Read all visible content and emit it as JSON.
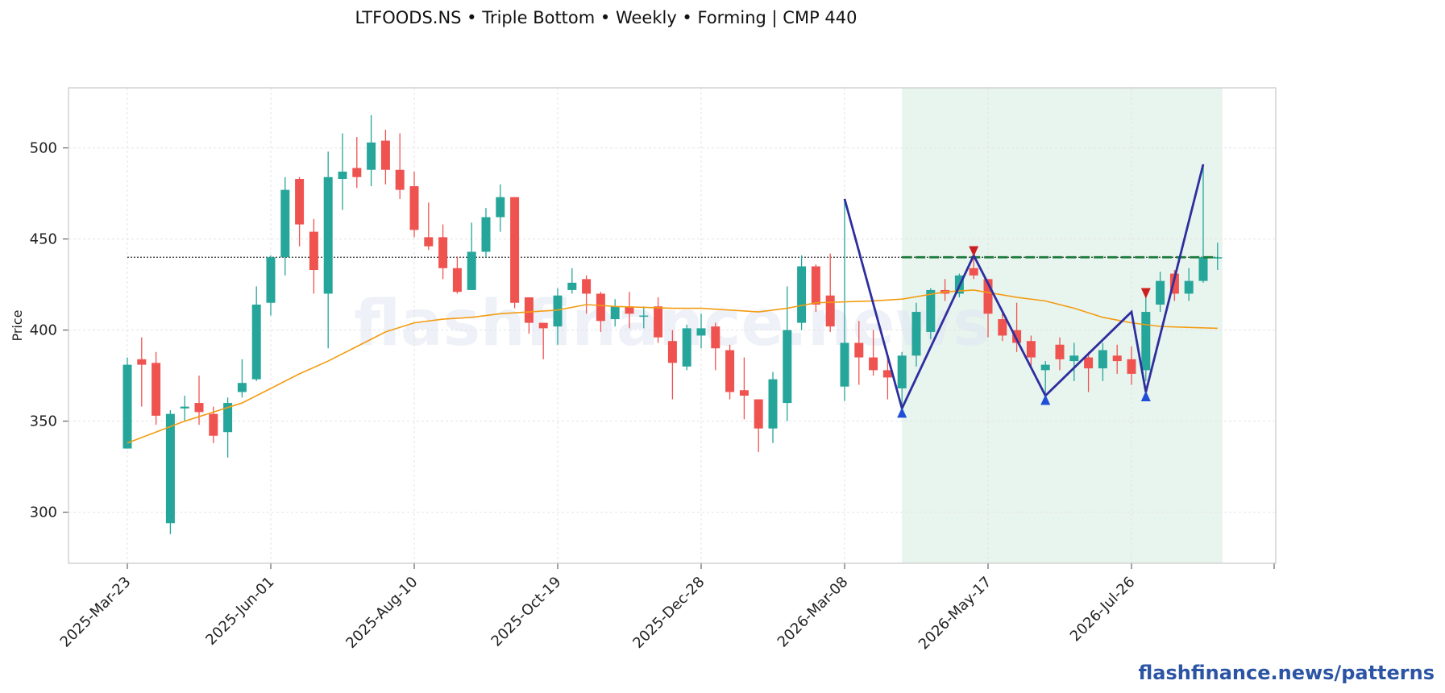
{
  "title": "LTFOODS.NS  •  Triple Bottom  •  Weekly  •  Forming  |  CMP 440",
  "brand": "flashfinance.news/patterns",
  "background_watermark": "flashfinance.news",
  "colors": {
    "up": "#26a69a",
    "down": "#ef5350",
    "ma": "#f39c12",
    "pattern": "#2e2e9e",
    "breakout": "#1a7a3a",
    "zone": "#e8f4ee",
    "marker_low": "#1f4fd6",
    "marker_high": "#cc1f1f",
    "brand": "#2c54a4"
  },
  "chart_data": {
    "type": "candlestick",
    "ylabel": "Price",
    "ylim": [
      272,
      533
    ],
    "y_ticks": [
      300,
      350,
      400,
      450,
      500
    ],
    "x_tick_labels": [
      "2025-Mar-23",
      "2025-Jun-01",
      "2025-Aug-10",
      "2025-Oct-19",
      "2025-Dec-28",
      "2026-Mar-08",
      "2026-May-17",
      "2026-Jul-26"
    ],
    "x_tick_index": [
      0,
      10,
      20,
      30,
      40,
      50,
      60,
      70
    ],
    "grid": true,
    "candles": [
      {
        "date": "2025-Mar-23",
        "o": 335,
        "h": 385,
        "l": 335,
        "c": 381
      },
      {
        "date": "2025-Mar-30",
        "o": 384,
        "h": 396,
        "l": 358,
        "c": 381
      },
      {
        "date": "2025-Apr-06",
        "o": 382,
        "h": 388,
        "l": 348,
        "c": 353
      },
      {
        "date": "2025-Apr-13",
        "o": 294,
        "h": 356,
        "l": 288,
        "c": 354
      },
      {
        "date": "2025-Apr-20",
        "o": 357,
        "h": 364,
        "l": 350,
        "c": 358
      },
      {
        "date": "2025-Apr-27",
        "o": 360,
        "h": 375,
        "l": 348,
        "c": 355
      },
      {
        "date": "2025-May-04",
        "o": 354,
        "h": 358,
        "l": 338,
        "c": 342
      },
      {
        "date": "2025-May-11",
        "o": 344,
        "h": 363,
        "l": 330,
        "c": 360
      },
      {
        "date": "2025-May-18",
        "o": 366,
        "h": 384,
        "l": 363,
        "c": 371
      },
      {
        "date": "2025-May-25",
        "o": 373,
        "h": 424,
        "l": 372,
        "c": 414
      },
      {
        "date": "2025-Jun-01",
        "o": 415,
        "h": 441,
        "l": 408,
        "c": 440
      },
      {
        "date": "2025-Jun-08",
        "o": 440,
        "h": 484,
        "l": 430,
        "c": 477
      },
      {
        "date": "2025-Jun-15",
        "o": 483,
        "h": 484,
        "l": 446,
        "c": 458
      },
      {
        "date": "2025-Jun-22",
        "o": 454,
        "h": 461,
        "l": 420,
        "c": 433
      },
      {
        "date": "2025-Jun-29",
        "o": 420,
        "h": 498,
        "l": 390,
        "c": 484
      },
      {
        "date": "2025-Jul-06",
        "o": 483,
        "h": 508,
        "l": 466,
        "c": 487
      },
      {
        "date": "2025-Jul-13",
        "o": 489,
        "h": 506,
        "l": 478,
        "c": 484
      },
      {
        "date": "2025-Jul-20",
        "o": 488,
        "h": 518,
        "l": 479,
        "c": 503
      },
      {
        "date": "2025-Jul-27",
        "o": 504,
        "h": 510,
        "l": 480,
        "c": 488
      },
      {
        "date": "2025-Aug-03",
        "o": 488,
        "h": 508,
        "l": 472,
        "c": 477
      },
      {
        "date": "2025-Aug-10",
        "o": 479,
        "h": 487,
        "l": 451,
        "c": 455
      },
      {
        "date": "2025-Aug-17",
        "o": 451,
        "h": 470,
        "l": 444,
        "c": 446
      },
      {
        "date": "2025-Aug-24",
        "o": 451,
        "h": 458,
        "l": 428,
        "c": 434
      },
      {
        "date": "2025-Aug-31",
        "o": 434,
        "h": 440,
        "l": 420,
        "c": 421
      },
      {
        "date": "2025-Sep-07",
        "o": 422,
        "h": 459,
        "l": 422,
        "c": 443
      },
      {
        "date": "2025-Sep-14",
        "o": 443,
        "h": 467,
        "l": 440,
        "c": 462
      },
      {
        "date": "2025-Sep-21",
        "o": 462,
        "h": 480,
        "l": 454,
        "c": 473
      },
      {
        "date": "2025-Sep-28",
        "o": 473,
        "h": 473,
        "l": 412,
        "c": 415
      },
      {
        "date": "2025-Oct-05",
        "o": 418,
        "h": 418,
        "l": 398,
        "c": 404
      },
      {
        "date": "2025-Oct-12",
        "o": 404,
        "h": 404,
        "l": 384,
        "c": 401
      },
      {
        "date": "2025-Oct-19",
        "o": 402,
        "h": 423,
        "l": 392,
        "c": 419
      },
      {
        "date": "2025-Oct-26",
        "o": 422,
        "h": 434,
        "l": 420,
        "c": 426
      },
      {
        "date": "2025-Nov-02",
        "o": 428,
        "h": 430,
        "l": 409,
        "c": 420
      },
      {
        "date": "2025-Nov-09",
        "o": 420,
        "h": 421,
        "l": 399,
        "c": 405
      },
      {
        "date": "2025-Nov-16",
        "o": 406,
        "h": 417,
        "l": 402,
        "c": 413
      },
      {
        "date": "2025-Nov-23",
        "o": 413,
        "h": 421,
        "l": 401,
        "c": 409
      },
      {
        "date": "2025-Dec-07",
        "o": 408,
        "h": 413,
        "l": 401,
        "c": 408
      },
      {
        "date": "2025-Dec-14",
        "o": 413,
        "h": 418,
        "l": 393,
        "c": 396
      },
      {
        "date": "2025-Dec-21",
        "o": 394,
        "h": 400,
        "l": 362,
        "c": 382
      },
      {
        "date": "2025-Dec-28",
        "o": 380,
        "h": 403,
        "l": 378,
        "c": 401
      },
      {
        "date": "2026-Jan-04",
        "o": 397,
        "h": 409,
        "l": 390,
        "c": 401
      },
      {
        "date": "2026-Jan-11",
        "o": 402,
        "h": 404,
        "l": 378,
        "c": 390
      },
      {
        "date": "2026-Jan-18",
        "o": 389,
        "h": 392,
        "l": 362,
        "c": 366
      },
      {
        "date": "2026-Jan-25",
        "o": 367,
        "h": 385,
        "l": 351,
        "c": 364
      },
      {
        "date": "2026-Feb-01",
        "o": 362,
        "h": 362,
        "l": 333,
        "c": 346
      },
      {
        "date": "2026-Feb-08",
        "o": 346,
        "h": 377,
        "l": 338,
        "c": 373
      },
      {
        "date": "2026-Feb-15",
        "o": 360,
        "h": 424,
        "l": 350,
        "c": 400
      },
      {
        "date": "2026-Feb-22",
        "o": 404,
        "h": 441,
        "l": 400,
        "c": 435
      },
      {
        "date": "2026-Mar-01",
        "o": 435,
        "h": 436,
        "l": 410,
        "c": 414
      },
      {
        "date": "2026-Mar-08",
        "o": 419,
        "h": 442,
        "l": 399,
        "c": 402
      },
      {
        "date": "2026-Mar-15",
        "o": 369,
        "h": 472,
        "l": 361,
        "c": 393
      },
      {
        "date": "2026-Mar-22",
        "o": 393,
        "h": 405,
        "l": 370,
        "c": 385
      },
      {
        "date": "2026-Mar-29",
        "o": 385,
        "h": 400,
        "l": 375,
        "c": 378
      },
      {
        "date": "2026-Apr-05",
        "o": 378,
        "h": 385,
        "l": 362,
        "c": 374
      },
      {
        "date": "2026-Apr-12",
        "o": 368,
        "h": 388,
        "l": 358,
        "c": 386
      },
      {
        "date": "2026-Apr-19",
        "o": 386,
        "h": 415,
        "l": 380,
        "c": 410
      },
      {
        "date": "2026-Apr-26",
        "o": 399,
        "h": 423,
        "l": 395,
        "c": 422
      },
      {
        "date": "2026-May-03",
        "o": 422,
        "h": 428,
        "l": 416,
        "c": 420
      },
      {
        "date": "2026-May-10",
        "o": 420,
        "h": 431,
        "l": 418,
        "c": 430
      },
      {
        "date": "2026-May-17",
        "o": 434,
        "h": 440,
        "l": 428,
        "c": 430
      },
      {
        "date": "2026-May-24",
        "o": 428,
        "h": 428,
        "l": 396,
        "c": 409
      },
      {
        "date": "2026-May-31",
        "o": 406,
        "h": 411,
        "l": 394,
        "c": 397
      },
      {
        "date": "2026-Jun-07",
        "o": 400,
        "h": 415,
        "l": 388,
        "c": 393
      },
      {
        "date": "2026-Jun-14",
        "o": 394,
        "h": 397,
        "l": 380,
        "c": 385
      },
      {
        "date": "2026-Jun-21",
        "o": 378,
        "h": 383,
        "l": 363,
        "c": 381
      },
      {
        "date": "2026-Jun-28",
        "o": 392,
        "h": 396,
        "l": 378,
        "c": 384
      },
      {
        "date": "2026-Jul-05",
        "o": 383,
        "h": 393,
        "l": 372,
        "c": 386
      },
      {
        "date": "2026-Jul-12",
        "o": 385,
        "h": 388,
        "l": 366,
        "c": 379
      },
      {
        "date": "2026-Jul-19",
        "o": 379,
        "h": 393,
        "l": 372,
        "c": 389
      },
      {
        "date": "2026-Jul-26",
        "o": 386,
        "h": 392,
        "l": 376,
        "c": 383
      },
      {
        "date": "2026-Aug-02",
        "o": 384,
        "h": 391,
        "l": 370,
        "c": 376
      },
      {
        "date": "2026-Aug-09",
        "o": 378,
        "h": 418,
        "l": 372,
        "c": 410
      },
      {
        "date": "2026-Aug-16",
        "o": 414,
        "h": 432,
        "l": 410,
        "c": 427
      },
      {
        "date": "2026-Aug-23",
        "o": 431,
        "h": 433,
        "l": 416,
        "c": 420
      },
      {
        "date": "2026-Aug-30",
        "o": 420,
        "h": 434,
        "l": 416,
        "c": 427
      },
      {
        "date": "2026-Sep-06",
        "o": 427,
        "h": 491,
        "l": 426,
        "c": 440
      },
      {
        "date": "2026-Sep-13",
        "o": 440,
        "h": 448,
        "l": 433,
        "c": 440
      }
    ],
    "moving_average": [
      {
        "i": 0,
        "v": 338
      },
      {
        "i": 4,
        "v": 350
      },
      {
        "i": 8,
        "v": 360
      },
      {
        "i": 10,
        "v": 368
      },
      {
        "i": 12,
        "v": 376
      },
      {
        "i": 14,
        "v": 383
      },
      {
        "i": 16,
        "v": 391
      },
      {
        "i": 18,
        "v": 399
      },
      {
        "i": 20,
        "v": 404
      },
      {
        "i": 22,
        "v": 406
      },
      {
        "i": 24,
        "v": 407
      },
      {
        "i": 26,
        "v": 409
      },
      {
        "i": 30,
        "v": 411
      },
      {
        "i": 32,
        "v": 414
      },
      {
        "i": 34,
        "v": 413
      },
      {
        "i": 38,
        "v": 412
      },
      {
        "i": 40,
        "v": 412
      },
      {
        "i": 44,
        "v": 410
      },
      {
        "i": 46,
        "v": 412
      },
      {
        "i": 48,
        "v": 415
      },
      {
        "i": 52,
        "v": 416
      },
      {
        "i": 54,
        "v": 417
      },
      {
        "i": 57,
        "v": 421
      },
      {
        "i": 59,
        "v": 422
      },
      {
        "i": 62,
        "v": 418
      },
      {
        "i": 64,
        "v": 416
      },
      {
        "i": 66,
        "v": 412
      },
      {
        "i": 68,
        "v": 407
      },
      {
        "i": 70,
        "v": 404
      },
      {
        "i": 72,
        "v": 402
      },
      {
        "i": 76,
        "v": 401
      }
    ],
    "pattern_line": [
      {
        "i": 50,
        "v": 472
      },
      {
        "i": 54,
        "v": 357
      },
      {
        "i": 59,
        "v": 441
      },
      {
        "i": 64,
        "v": 364
      },
      {
        "i": 70,
        "v": 410
      },
      {
        "i": 71,
        "v": 366
      },
      {
        "i": 75,
        "v": 491
      }
    ],
    "low_markers": [
      {
        "i": 54,
        "v": 355
      },
      {
        "i": 64,
        "v": 362
      },
      {
        "i": 71,
        "v": 364
      }
    ],
    "high_markers": [
      {
        "i": 59,
        "v": 443
      },
      {
        "i": 71,
        "v": 420
      }
    ],
    "breakout_level": {
      "v": 440,
      "from_i": 54,
      "to_i": 76
    },
    "cmp_level": {
      "v": 440,
      "from_i": 0,
      "to_i": 76
    },
    "pattern_zone": {
      "from_i": 54,
      "to_i": 76
    }
  }
}
